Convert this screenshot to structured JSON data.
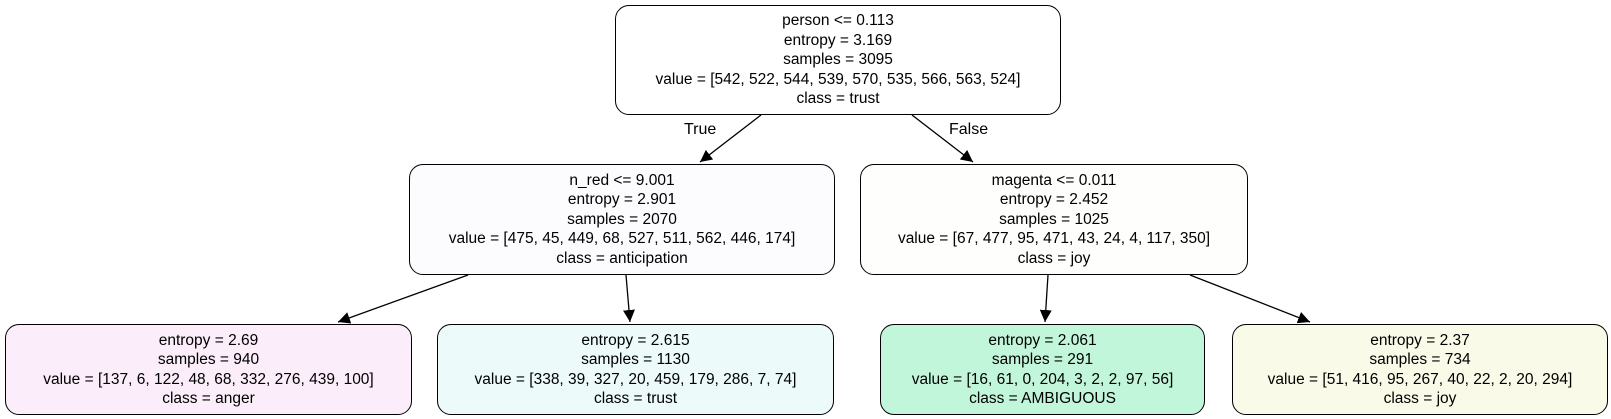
{
  "tree": {
    "nodes": [
      {
        "id": "root",
        "condition": "person <= 0.113",
        "entropy": "entropy = 3.169",
        "samples": "samples = 3095",
        "value": "value = [542, 522, 544, 539, 570, 535, 566, 563, 524]",
        "class": "class = trust",
        "fill": "#ffffff"
      },
      {
        "id": "left",
        "condition": "n_red <= 9.001",
        "entropy": "entropy = 2.901",
        "samples": "samples = 2070",
        "value": "value = [475, 45, 449, 68, 527, 511, 562, 446, 174]",
        "class": "class = anticipation",
        "fill": "#fcfcff"
      },
      {
        "id": "right",
        "condition": "magenta <= 0.011",
        "entropy": "entropy = 2.452",
        "samples": "samples = 1025",
        "value": "value = [67, 477, 95, 471, 43, 24, 4, 117, 350]",
        "class": "class = joy",
        "fill": "#fefffd"
      },
      {
        "id": "ll",
        "entropy": "entropy = 2.69",
        "samples": "samples = 940",
        "value": "value = [137, 6, 122, 48, 68, 332, 276, 439, 100]",
        "class": "class = anger",
        "fill": "#fbeefa"
      },
      {
        "id": "lr",
        "entropy": "entropy = 2.615",
        "samples": "samples = 1130",
        "value": "value = [338, 39, 327, 20, 459, 179, 286, 7, 74]",
        "class": "class = trust",
        "fill": "#ecfafa"
      },
      {
        "id": "rl",
        "entropy": "entropy = 2.061",
        "samples": "samples = 291",
        "value": "value = [16, 61, 0, 204, 3, 2, 2, 97, 56]",
        "class": "class = AMBIGUOUS",
        "fill": "#c2f6da"
      },
      {
        "id": "rr",
        "entropy": "entropy = 2.37",
        "samples": "samples = 734",
        "value": "value = [51, 416, 95, 267, 40, 22, 2, 20, 294]",
        "class": "class = joy",
        "fill": "#f9fbe8"
      }
    ],
    "edge_labels": {
      "true": "True",
      "false": "False"
    },
    "edge_color": "#000000"
  }
}
